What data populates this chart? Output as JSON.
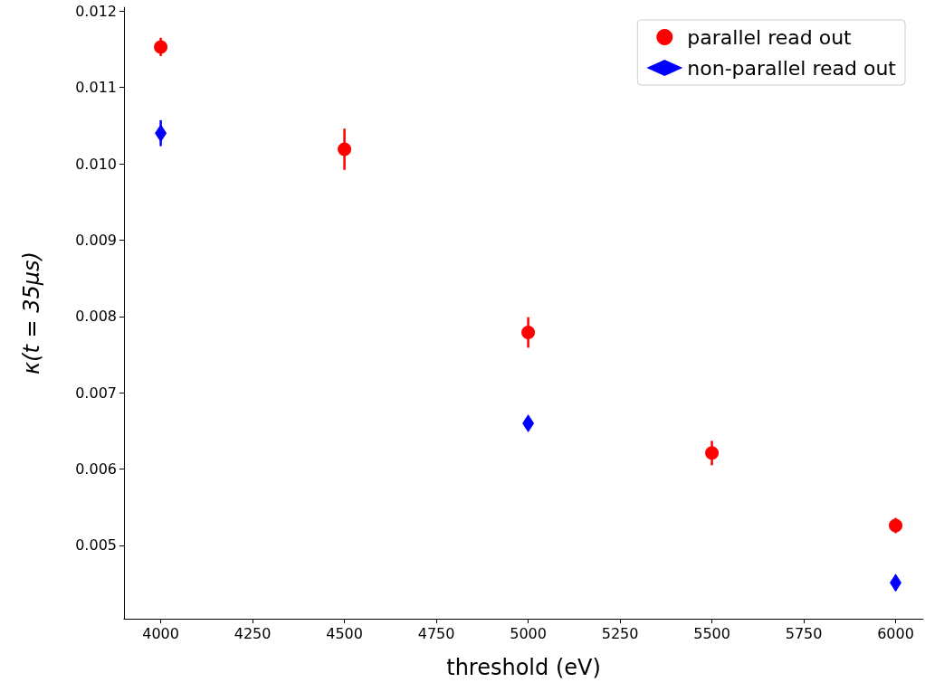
{
  "chart_data": {
    "type": "scatter",
    "xlabel": "threshold (eV)",
    "ylabel": "κ(t = 35μs)",
    "series": [
      {
        "name": "parallel read out",
        "color": "#ff0000",
        "marker": "circle",
        "x": [
          4000,
          4500,
          5000,
          5500,
          6000
        ],
        "values": [
          0.01153,
          0.01019,
          0.00779,
          0.00621,
          0.00526
        ],
        "errors": [
          0.00012,
          0.00027,
          0.0002,
          0.00016,
          0.0001
        ]
      },
      {
        "name": "non-parallel read out",
        "color": "#0000ff",
        "marker": "diamond",
        "x": [
          4000,
          5000,
          6000
        ],
        "values": [
          0.0104,
          0.0066,
          0.00451
        ],
        "errors": [
          0.00017,
          8e-05,
          0.0001
        ]
      }
    ],
    "xlim": [
      3900,
      6075
    ],
    "xticks": [
      4000,
      4250,
      4500,
      4750,
      5000,
      5250,
      5500,
      5750,
      6000
    ],
    "ylim": [
      0.00404,
      0.01205
    ],
    "yticks": [
      0.005,
      0.006,
      0.007,
      0.008,
      0.009,
      {
        "value": 0.01,
        "label": "0.010"
      },
      0.011,
      0.012
    ],
    "grid": false,
    "legend": "top right"
  }
}
